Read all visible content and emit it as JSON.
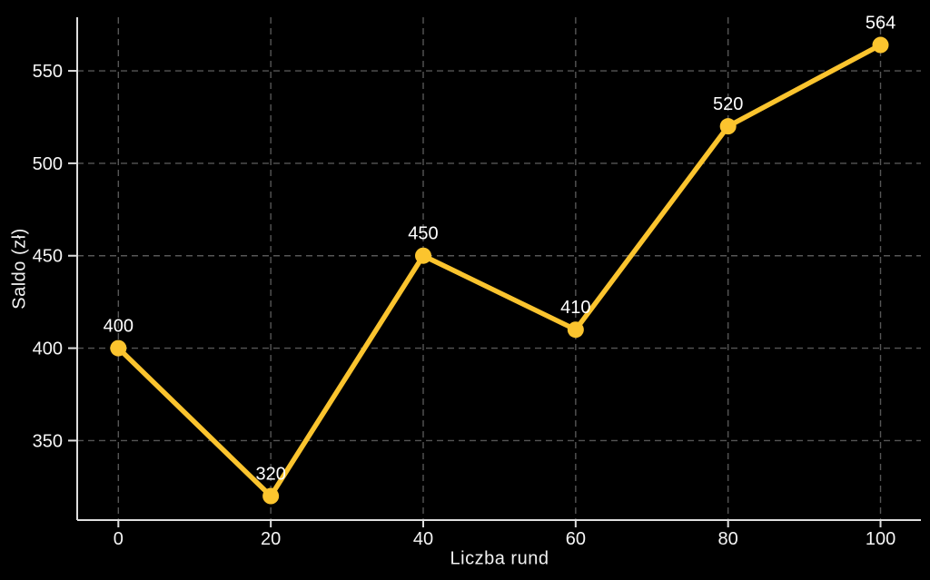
{
  "chart_data": {
    "type": "line",
    "title": "",
    "xlabel": "Liczba rund",
    "ylabel": "Saldo (zł)",
    "x": [
      0,
      20,
      40,
      60,
      80,
      100
    ],
    "y": [
      400,
      320,
      450,
      410,
      520,
      564
    ],
    "point_labels": [
      "400",
      "320",
      "450",
      "410",
      "520",
      "564"
    ],
    "xticks": [
      0,
      20,
      40,
      60,
      80,
      100
    ],
    "yticks": [
      350,
      400,
      450,
      500,
      550
    ],
    "xlim": [
      -5.4,
      105.3
    ],
    "ylim": [
      307,
      579
    ],
    "grid": true,
    "legend": "none",
    "background_color": "#000000",
    "line_color": "#FBC42E",
    "marker_color": "#FBC42E",
    "grid_color": "#565656",
    "axis_color": "#DEDEDE",
    "tick_label_color": "#F5F5F5",
    "point_label_color": "#FFFFFF"
  }
}
